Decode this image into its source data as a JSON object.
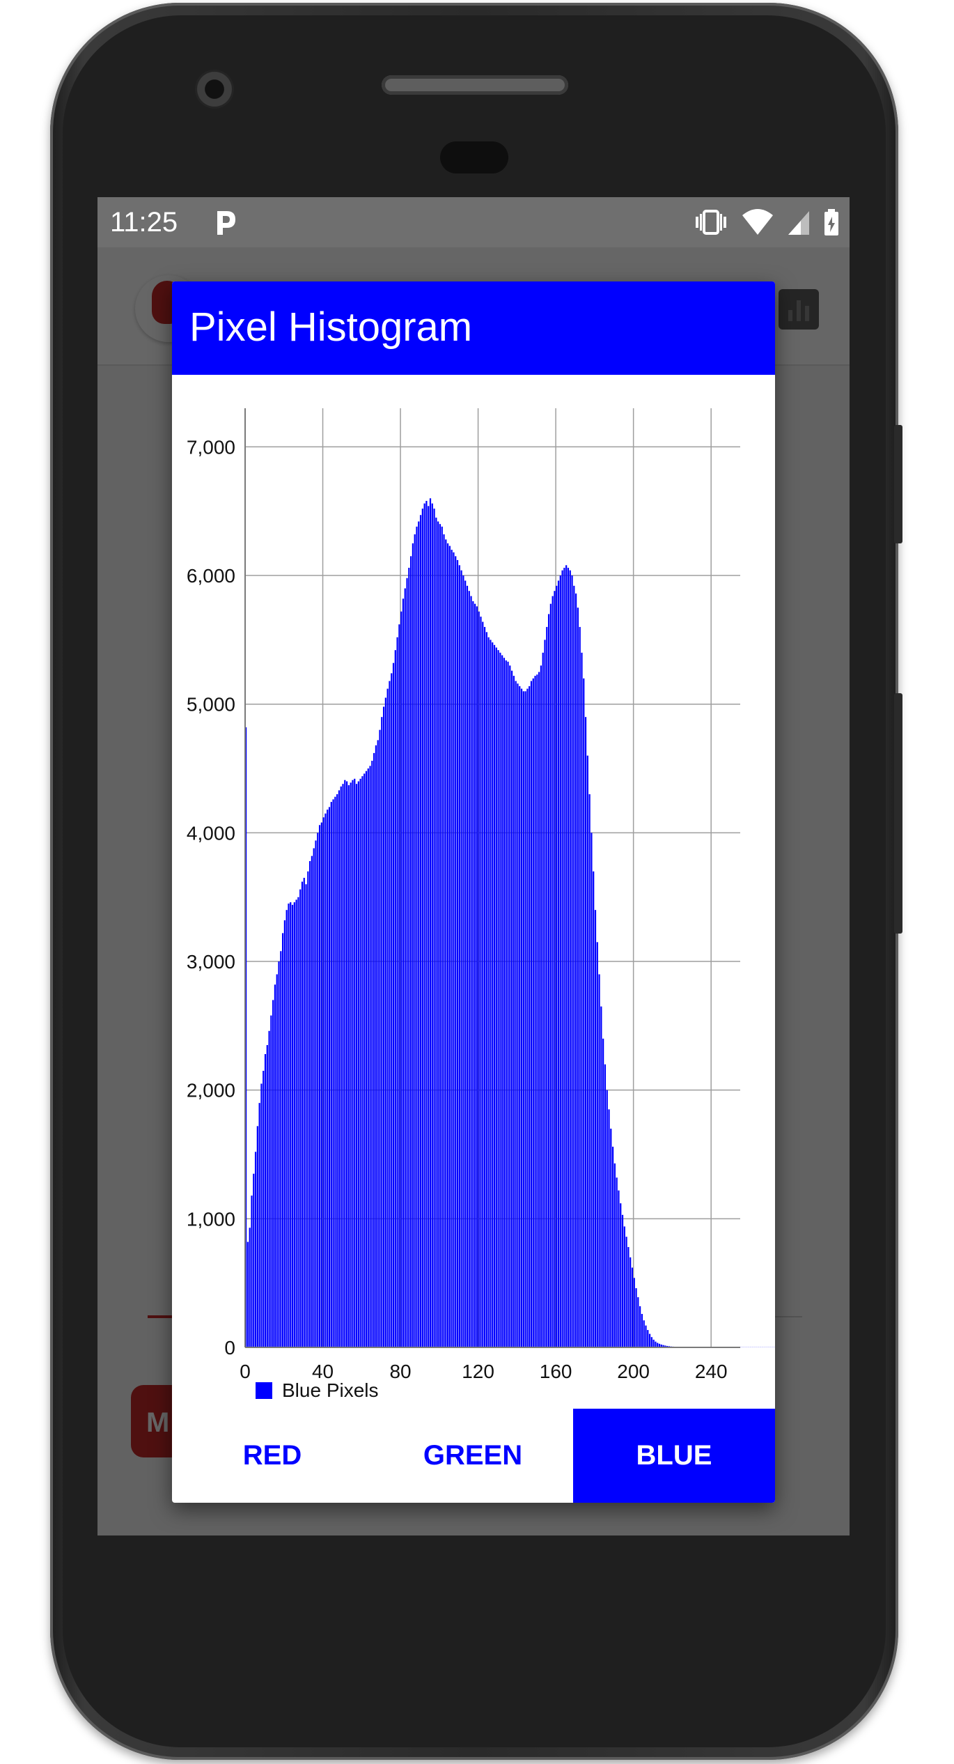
{
  "status_bar": {
    "time": "11:25",
    "notification_icon": "p-app-icon",
    "icons": [
      "vibrate-icon",
      "wifi-icon",
      "signal-icon",
      "battery-charging-icon"
    ]
  },
  "background_app": {
    "button_partial_label": "M",
    "accent_color": "#c62828"
  },
  "dialog": {
    "title": "Pixel Histogram",
    "header_color": "#0000ff",
    "tabs": [
      {
        "label": "RED",
        "selected": false
      },
      {
        "label": "GREEN",
        "selected": false
      },
      {
        "label": "BLUE",
        "selected": true
      }
    ]
  },
  "chart_data": {
    "type": "bar",
    "series": [
      {
        "name": "Blue Pixels",
        "color": "#0000ff",
        "values": [
          4820,
          820,
          930,
          1180,
          1350,
          1520,
          1720,
          1900,
          2050,
          2150,
          2280,
          2350,
          2460,
          2580,
          2700,
          2820,
          2900,
          3000,
          3080,
          3220,
          3320,
          3400,
          3450,
          3460,
          3440,
          3460,
          3480,
          3500,
          3560,
          3620,
          3650,
          3600,
          3700,
          3780,
          3820,
          3880,
          3940,
          4000,
          4060,
          4080,
          4120,
          4150,
          4180,
          4200,
          4240,
          4260,
          4280,
          4300,
          4330,
          4360,
          4380,
          4410,
          4400,
          4370,
          4390,
          4410,
          4420,
          4380,
          4400,
          4420,
          4440,
          4460,
          4480,
          4500,
          4520,
          4560,
          4620,
          4680,
          4720,
          4800,
          4900,
          4980,
          5050,
          5120,
          5180,
          5240,
          5320,
          5420,
          5520,
          5620,
          5720,
          5820,
          5900,
          5980,
          6060,
          6150,
          6250,
          6320,
          6380,
          6420,
          6470,
          6520,
          6560,
          6580,
          6540,
          6600,
          6560,
          6520,
          6450,
          6420,
          6400,
          6380,
          6320,
          6280,
          6250,
          6230,
          6200,
          6180,
          6150,
          6120,
          6080,
          6040,
          6000,
          5960,
          5920,
          5880,
          5840,
          5800,
          5780,
          5760,
          5720,
          5680,
          5640,
          5600,
          5560,
          5520,
          5500,
          5480,
          5460,
          5440,
          5420,
          5400,
          5380,
          5360,
          5340,
          5330,
          5300,
          5260,
          5220,
          5180,
          5160,
          5140,
          5120,
          5100,
          5100,
          5120,
          5140,
          5180,
          5200,
          5220,
          5230,
          5250,
          5300,
          5400,
          5500,
          5600,
          5700,
          5780,
          5840,
          5880,
          5920,
          5960,
          6000,
          6040,
          6060,
          6080,
          6060,
          6040,
          6000,
          5920,
          5860,
          5750,
          5600,
          5400,
          5200,
          4900,
          4600,
          4300,
          4000,
          3700,
          3400,
          3150,
          2900,
          2650,
          2400,
          2200,
          2000,
          1850,
          1700,
          1560,
          1430,
          1320,
          1220,
          1120,
          1030,
          940,
          860,
          780,
          700,
          620,
          540,
          460,
          390,
          320,
          260,
          210,
          170,
          135,
          105,
          80,
          60,
          45,
          35,
          28,
          22,
          18,
          14,
          11,
          9,
          7,
          6,
          5,
          4,
          4,
          3,
          3,
          2,
          2,
          2,
          1,
          1,
          1,
          1,
          1,
          1,
          1,
          1,
          1,
          1,
          1,
          1,
          1,
          1,
          1,
          1,
          1,
          1,
          1,
          1,
          1,
          1,
          1,
          1,
          1,
          1,
          1,
          1,
          1,
          1,
          1,
          1,
          1,
          1,
          1,
          1,
          1,
          1,
          1,
          1,
          1,
          1,
          1,
          1,
          1,
          1
        ]
      }
    ],
    "x_start": 0,
    "xlim": [
      0,
      255
    ],
    "ylim": [
      0,
      7300
    ],
    "x_ticks": [
      0,
      40,
      80,
      120,
      160,
      200,
      240
    ],
    "y_ticks": [
      0,
      1000,
      2000,
      3000,
      4000,
      5000,
      6000,
      7000
    ],
    "x_tick_labels": [
      "0",
      "40",
      "80",
      "120",
      "160",
      "200",
      "240"
    ],
    "y_tick_labels": [
      "0",
      "1,000",
      "2,000",
      "3,000",
      "4,000",
      "5,000",
      "6,000",
      "7,000"
    ],
    "grid": true,
    "legend_position": "bottom-left"
  }
}
